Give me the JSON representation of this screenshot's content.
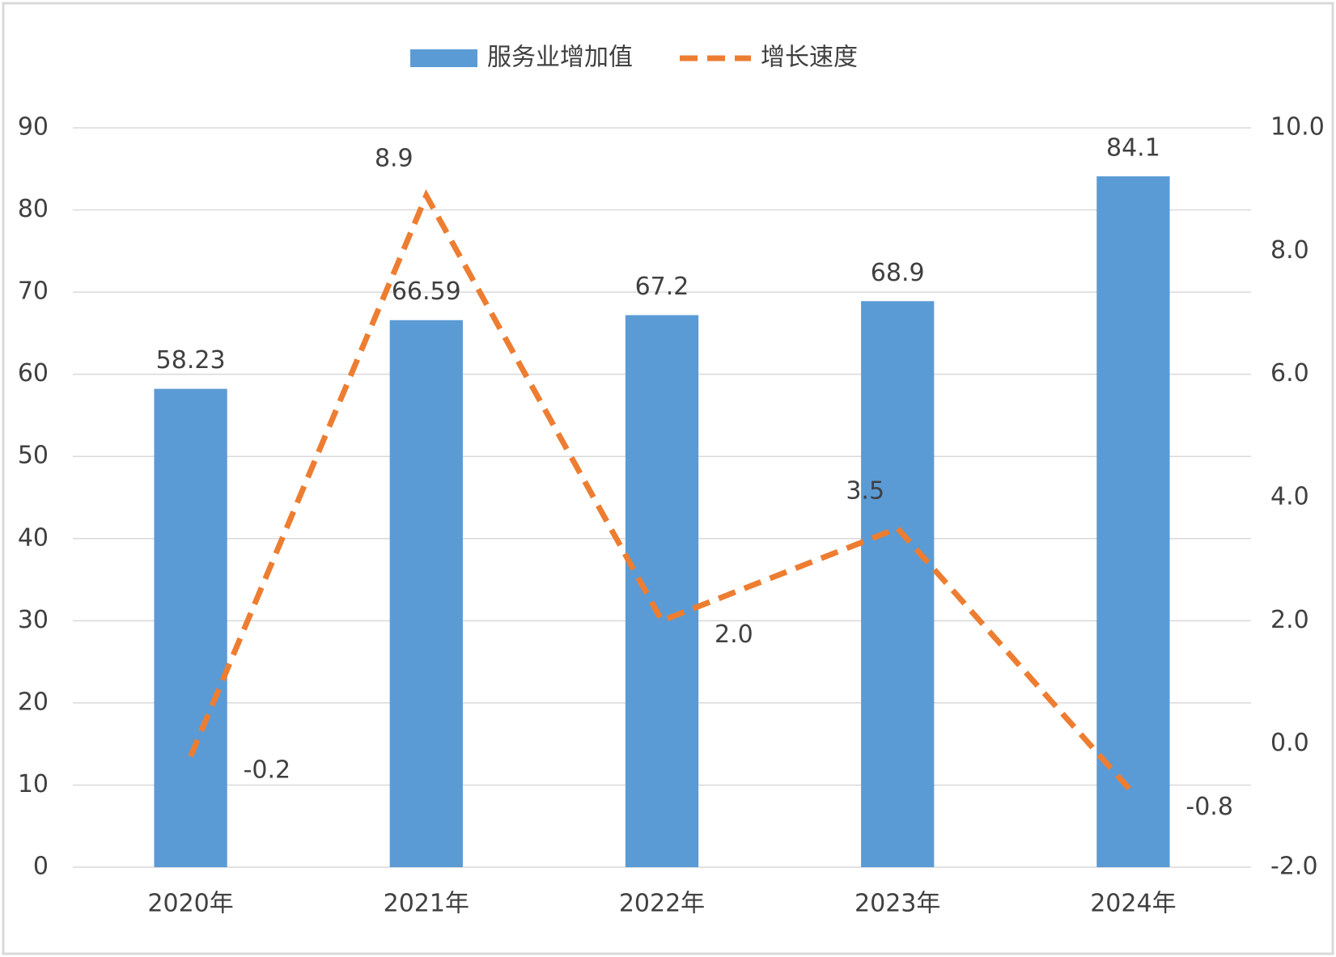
{
  "chart_data": {
    "type": "bar",
    "categories": [
      "2020年",
      "2021年",
      "2022年",
      "2023年",
      "2024年"
    ],
    "series": [
      {
        "name": "服务业增加值",
        "type": "bar",
        "color": "#5b9bd5",
        "values": [
          58.23,
          66.59,
          67.2,
          68.9,
          84.1
        ]
      },
      {
        "name": "增长速度",
        "type": "line",
        "axis": "y2",
        "color": "#ed7d31",
        "line_style": "dashed",
        "values": [
          -0.2,
          8.9,
          2.0,
          3.5,
          -0.8
        ],
        "value_labels": [
          "-0.2",
          "8.9",
          "2.0",
          "3.5",
          "-0.8"
        ]
      }
    ],
    "ylim": [
      0,
      90
    ],
    "yticks": [
      0,
      10,
      20,
      30,
      40,
      50,
      60,
      70,
      80,
      90
    ],
    "y2lim": [
      -2,
      10
    ],
    "y2ticks": [
      {
        "value": -2,
        "label": "-2.0"
      },
      {
        "value": 0,
        "label": "0.0"
      },
      {
        "value": 2,
        "label": "2.0"
      },
      {
        "value": 4,
        "label": "4.0"
      },
      {
        "value": 6,
        "label": "6.0"
      },
      {
        "value": 8,
        "label": "8.0"
      },
      {
        "value": 10,
        "label": "10.0"
      }
    ],
    "grid": true,
    "legend": "top"
  }
}
